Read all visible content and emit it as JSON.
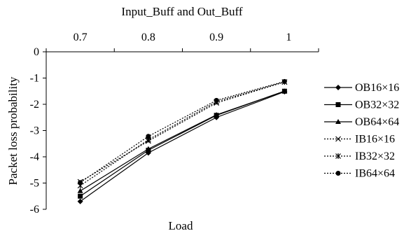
{
  "chart_data": {
    "type": "line",
    "title": "Input_Buff and Out_Buff",
    "xlabel": "Load",
    "ylabel": "Packet loss probability",
    "x_ticks": [
      "0.7",
      "0.8",
      "0.9",
      "1"
    ],
    "y_ticks": [
      "0",
      "-1",
      "-2",
      "-3",
      "-4",
      "-5",
      "-6"
    ],
    "xlim": [
      0.65,
      1.05
    ],
    "ylim": [
      -6,
      0
    ],
    "grid": false,
    "legend_position": "right",
    "x": [
      0.7,
      0.8,
      0.9,
      1.0
    ],
    "series": [
      {
        "name": "OB16×16",
        "values": [
          -5.7,
          -3.85,
          -2.5,
          -1.52
        ],
        "marker": "diamond",
        "dash": "solid"
      },
      {
        "name": "OB32×32",
        "values": [
          -5.5,
          -3.75,
          -2.42,
          -1.5
        ],
        "marker": "square",
        "dash": "solid"
      },
      {
        "name": "OB64×64",
        "values": [
          -5.3,
          -3.7,
          -2.4,
          -1.5
        ],
        "marker": "triangle",
        "dash": "solid"
      },
      {
        "name": "IB16×16",
        "values": [
          -4.95,
          -3.4,
          -1.95,
          -1.15
        ],
        "marker": "x",
        "dash": "dotted"
      },
      {
        "name": "IB32×32",
        "values": [
          -5.1,
          -3.35,
          -1.9,
          -1.15
        ],
        "marker": "star",
        "dash": "dotted"
      },
      {
        "name": "IB64×64",
        "values": [
          -4.98,
          -3.22,
          -1.85,
          -1.13
        ],
        "marker": "circle",
        "dash": "dotted"
      }
    ]
  }
}
